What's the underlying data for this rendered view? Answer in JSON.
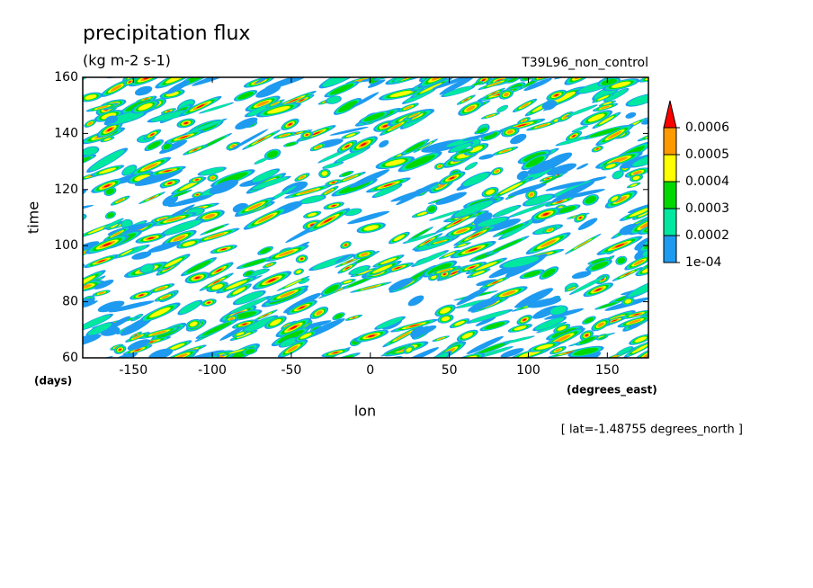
{
  "chart_data": {
    "type": "contour",
    "title": "precipitation flux",
    "subtitle": "(kg m-2 s-1)",
    "run_label": "T39L96_non_control",
    "x_label": "lon",
    "x_units": "(degrees_east)",
    "y_label": "time",
    "y_units": "(days)",
    "annotation": "[ lat=-1.48755 degrees_north ]",
    "xlim": [
      -182,
      176
    ],
    "xticks": [
      -150,
      -100,
      -50,
      0,
      50,
      100,
      150
    ],
    "ylim": [
      60,
      160
    ],
    "yticks": [
      60,
      80,
      100,
      120,
      140,
      160
    ],
    "levels": [
      {
        "value": 0.0001,
        "label": "1e-04"
      },
      0.0002,
      0.0003,
      0.0004,
      0.0005,
      0.0006
    ],
    "level_colors": [
      "#1e9bf0",
      "#00e8a0",
      "#00d800",
      "#ffff00",
      "#ff9900",
      "#ff0000"
    ]
  }
}
